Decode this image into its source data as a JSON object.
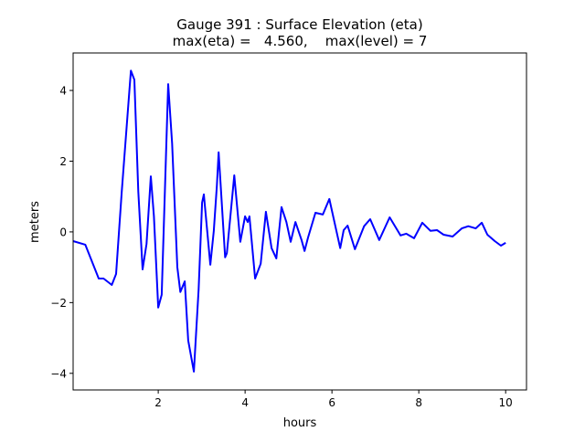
{
  "chart_data": {
    "type": "line",
    "title": "Gauge 391 : Surface Elevation (eta)",
    "subtitle": "max(eta) =   4.560,    max(level) = 7",
    "xlabel": "hours",
    "ylabel": "meters",
    "xlim": [
      0.04,
      10.48
    ],
    "ylim": [
      -4.47,
      5.06
    ],
    "xticks": [
      2,
      4,
      6,
      8,
      10
    ],
    "xtick_labels": [
      "2",
      "4",
      "6",
      "8",
      "10"
    ],
    "yticks": [
      -4,
      -2,
      0,
      2,
      4
    ],
    "ytick_labels": [
      "−4",
      "−2",
      "0",
      "2",
      "4"
    ],
    "grid": false,
    "series": [
      {
        "name": "eta",
        "color": "#0000ff",
        "x": [
          0.04,
          0.32,
          0.63,
          0.74,
          0.93,
          1.03,
          1.16,
          1.37,
          1.45,
          1.54,
          1.64,
          1.73,
          1.83,
          1.9,
          2.0,
          2.08,
          2.23,
          2.32,
          2.44,
          2.51,
          2.61,
          2.69,
          2.82,
          2.93,
          3.01,
          3.05,
          3.2,
          3.28,
          3.35,
          3.39,
          3.54,
          3.58,
          3.75,
          3.89,
          4.0,
          4.06,
          4.1,
          4.23,
          4.36,
          4.48,
          4.61,
          4.72,
          4.84,
          4.95,
          5.05,
          5.16,
          5.3,
          5.37,
          5.45,
          5.62,
          5.79,
          5.94,
          6.19,
          6.27,
          6.36,
          6.53,
          6.74,
          6.88,
          7.09,
          7.33,
          7.58,
          7.71,
          7.89,
          8.08,
          8.27,
          8.42,
          8.57,
          8.78,
          8.99,
          9.14,
          9.31,
          9.45,
          9.58,
          9.75,
          9.89,
          10.0
        ],
        "y": [
          -0.26,
          -0.36,
          -1.32,
          -1.32,
          -1.5,
          -1.19,
          1.14,
          4.56,
          4.3,
          1.14,
          -1.06,
          -0.34,
          1.57,
          0.44,
          -2.14,
          -1.78,
          4.18,
          2.5,
          -1.0,
          -1.7,
          -1.4,
          -3.07,
          -3.95,
          -1.63,
          0.83,
          1.06,
          -0.93,
          0.03,
          1.32,
          2.25,
          -0.72,
          -0.6,
          1.6,
          -0.28,
          0.44,
          0.28,
          0.44,
          -1.32,
          -0.9,
          0.57,
          -0.46,
          -0.75,
          0.7,
          0.28,
          -0.28,
          0.28,
          -0.23,
          -0.54,
          -0.16,
          0.54,
          0.49,
          0.93,
          -0.46,
          0.05,
          0.18,
          -0.49,
          0.16,
          0.36,
          -0.23,
          0.41,
          -0.1,
          -0.05,
          -0.18,
          0.26,
          0.03,
          0.05,
          -0.08,
          -0.13,
          0.1,
          0.16,
          0.1,
          0.26,
          -0.08,
          -0.26,
          -0.39,
          -0.31
        ]
      }
    ]
  }
}
